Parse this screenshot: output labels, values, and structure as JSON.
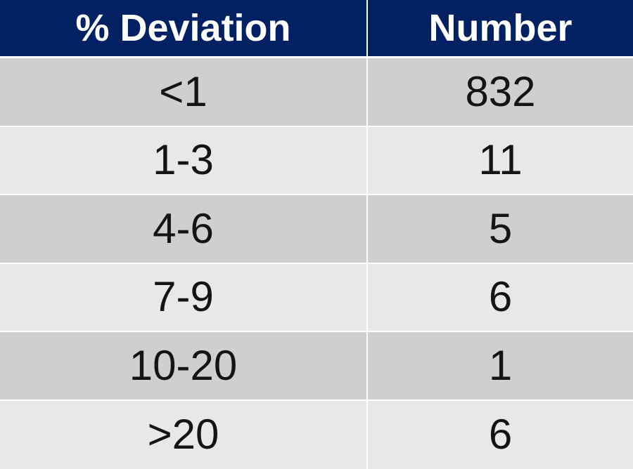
{
  "table": {
    "headers": [
      "% Deviation",
      "Number"
    ],
    "rows": [
      {
        "deviation": "<1",
        "number": "832"
      },
      {
        "deviation": "1-3",
        "number": "11"
      },
      {
        "deviation": "4-6",
        "number": "5"
      },
      {
        "deviation": "7-9",
        "number": "6"
      },
      {
        "deviation": "10-20",
        "number": "1"
      },
      {
        "deviation": ">20",
        "number": "6"
      }
    ]
  },
  "colors": {
    "header_bg": "#012163",
    "header_text": "#ffffff",
    "row_dark": "#cfcfcf",
    "row_light": "#e8e8e8"
  }
}
